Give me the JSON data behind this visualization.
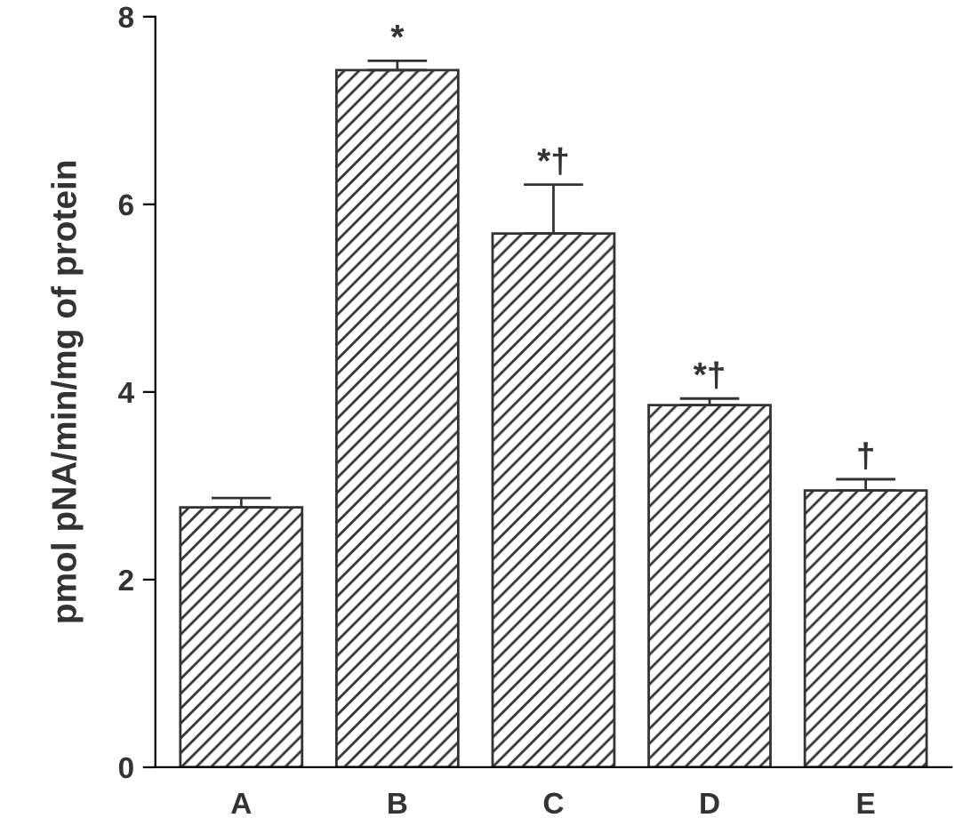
{
  "chart_data": {
    "type": "bar",
    "ylabel": "pmol pNA/min/mg of protein",
    "categories": [
      "A",
      "B",
      "C",
      "D",
      "E"
    ],
    "values": [
      2.77,
      7.43,
      5.69,
      3.86,
      2.95
    ],
    "errors": [
      0.1,
      0.1,
      0.52,
      0.07,
      0.12
    ],
    "color": "#333333",
    "ylim": [
      0,
      8
    ],
    "yticks": [
      0,
      2,
      4,
      6,
      8
    ],
    "grid": false,
    "annotations": [
      {
        "text": "*",
        "x": "B",
        "y": 7.53
      },
      {
        "text": "*†",
        "x": "C",
        "y": 6.21
      },
      {
        "text": "*†",
        "x": "D",
        "y": 3.93
      },
      {
        "text": "†",
        "x": "E",
        "y": 3.07
      }
    ]
  }
}
